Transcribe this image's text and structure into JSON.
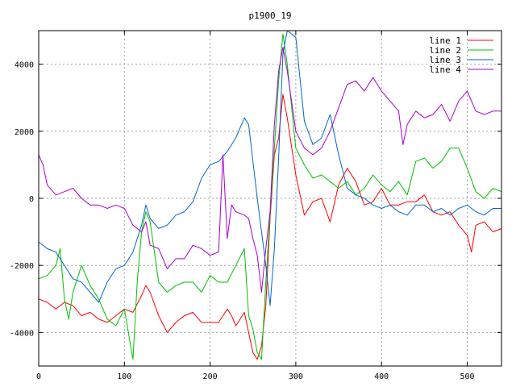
{
  "chart_data": {
    "type": "line",
    "title": "p1900_19",
    "xlabel": "",
    "ylabel": "",
    "xlim": [
      0,
      540
    ],
    "ylim": [
      -5000,
      5000
    ],
    "x_ticks": [
      0,
      100,
      200,
      300,
      400,
      500
    ],
    "y_ticks": [
      -4000,
      -2000,
      0,
      2000,
      4000
    ],
    "grid": true,
    "legend_position": "top-right",
    "series": [
      {
        "name": "line 1",
        "color": "#ff0000",
        "x": [
          0,
          10,
          20,
          30,
          40,
          50,
          60,
          70,
          80,
          90,
          100,
          110,
          120,
          125,
          130,
          140,
          150,
          160,
          170,
          180,
          190,
          200,
          210,
          220,
          225,
          230,
          240,
          245,
          250,
          255,
          260,
          265,
          270,
          275,
          280,
          285,
          290,
          300,
          310,
          320,
          330,
          340,
          350,
          360,
          370,
          380,
          390,
          400,
          410,
          420,
          430,
          440,
          450,
          460,
          470,
          480,
          490,
          500,
          505,
          510,
          520,
          530,
          540
        ],
        "values": [
          -3000,
          -3100,
          -3300,
          -3100,
          -3200,
          -3500,
          -3400,
          -3600,
          -3700,
          -3500,
          -3300,
          -3400,
          -2900,
          -2600,
          -2800,
          -3500,
          -4000,
          -3700,
          -3500,
          -3400,
          -3700,
          -3700,
          -3700,
          -3300,
          -3500,
          -3800,
          -3400,
          -4000,
          -4600,
          -4800,
          -4400,
          -3200,
          -600,
          1300,
          1800,
          3100,
          2400,
          700,
          -500,
          -100,
          0,
          -700,
          400,
          900,
          500,
          -200,
          -100,
          300,
          -200,
          -200,
          -100,
          -100,
          100,
          -400,
          -500,
          -400,
          -800,
          -1100,
          -1600,
          -800,
          -700,
          -1000,
          -900
        ]
      },
      {
        "name": "line 2",
        "color": "#00c000",
        "x": [
          0,
          10,
          20,
          25,
          30,
          35,
          40,
          50,
          60,
          70,
          80,
          90,
          100,
          110,
          115,
          120,
          125,
          130,
          140,
          150,
          160,
          170,
          180,
          190,
          200,
          210,
          220,
          230,
          240,
          245,
          250,
          255,
          260,
          265,
          270,
          275,
          280,
          285,
          290,
          300,
          310,
          320,
          330,
          340,
          350,
          360,
          370,
          380,
          390,
          400,
          410,
          420,
          430,
          440,
          450,
          460,
          470,
          480,
          490,
          500,
          510,
          520,
          530,
          540
        ],
        "values": [
          -2400,
          -2300,
          -2000,
          -1500,
          -3000,
          -3600,
          -2800,
          -2000,
          -2600,
          -3000,
          -3600,
          -3800,
          -3300,
          -4800,
          -2500,
          -1000,
          -400,
          -700,
          -2500,
          -2800,
          -2600,
          -2500,
          -2500,
          -2800,
          -2300,
          -2500,
          -2500,
          -2000,
          -1500,
          -3500,
          -3900,
          -4600,
          -4800,
          -2500,
          -500,
          1500,
          3500,
          4900,
          4000,
          1500,
          1000,
          600,
          700,
          500,
          300,
          500,
          100,
          300,
          700,
          400,
          200,
          500,
          100,
          1100,
          1200,
          900,
          1100,
          1500,
          1500,
          900,
          200,
          0,
          300,
          200
        ]
      },
      {
        "name": "line 3",
        "color": "#0066cc",
        "x": [
          0,
          10,
          20,
          30,
          40,
          50,
          60,
          70,
          80,
          90,
          100,
          110,
          120,
          125,
          130,
          140,
          150,
          160,
          170,
          180,
          190,
          200,
          210,
          220,
          230,
          240,
          245,
          250,
          255,
          260,
          265,
          270,
          275,
          280,
          285,
          290,
          300,
          310,
          320,
          330,
          340,
          350,
          360,
          370,
          380,
          390,
          400,
          410,
          420,
          430,
          440,
          450,
          460,
          470,
          480,
          490,
          500,
          510,
          520,
          530,
          540
        ],
        "values": [
          -1300,
          -1500,
          -1600,
          -2000,
          -2400,
          -2500,
          -2800,
          -3100,
          -2500,
          -2100,
          -2000,
          -1600,
          -800,
          -200,
          -600,
          -900,
          -800,
          -500,
          -400,
          -100,
          600,
          1000,
          1100,
          1400,
          1800,
          2400,
          2200,
          1100,
          0,
          -1000,
          -2000,
          -3200,
          -1500,
          1200,
          4300,
          5000,
          4800,
          2300,
          1600,
          1800,
          2500,
          1300,
          300,
          100,
          0,
          -200,
          -300,
          -200,
          -400,
          -500,
          -200,
          -200,
          -400,
          -300,
          -500,
          -300,
          -200,
          -400,
          -500,
          -300,
          -300
        ]
      },
      {
        "name": "line 4",
        "color": "#aa00cc",
        "x": [
          0,
          5,
          10,
          20,
          30,
          40,
          50,
          60,
          70,
          80,
          90,
          100,
          110,
          120,
          125,
          130,
          140,
          150,
          160,
          170,
          180,
          190,
          200,
          210,
          215,
          220,
          225,
          230,
          240,
          245,
          250,
          255,
          260,
          265,
          270,
          275,
          280,
          285,
          290,
          300,
          310,
          320,
          330,
          340,
          350,
          360,
          370,
          380,
          390,
          400,
          410,
          420,
          425,
          430,
          440,
          450,
          460,
          470,
          480,
          490,
          500,
          510,
          520,
          530,
          540
        ],
        "values": [
          1300,
          1000,
          400,
          100,
          200,
          300,
          0,
          -200,
          -200,
          -300,
          -200,
          -300,
          -800,
          -1000,
          -700,
          -1400,
          -1500,
          -2100,
          -1800,
          -1800,
          -1400,
          -1500,
          -1700,
          -1600,
          1300,
          -1200,
          -200,
          -400,
          -500,
          -600,
          -1200,
          -1700,
          -2800,
          -1500,
          -400,
          2200,
          3800,
          4500,
          3800,
          2000,
          1500,
          1300,
          1500,
          2000,
          2700,
          3400,
          3500,
          3200,
          3600,
          3200,
          2900,
          2600,
          1600,
          2200,
          2600,
          2400,
          2500,
          2800,
          2300,
          2900,
          3200,
          2600,
          2500,
          2600,
          2600
        ]
      }
    ]
  }
}
